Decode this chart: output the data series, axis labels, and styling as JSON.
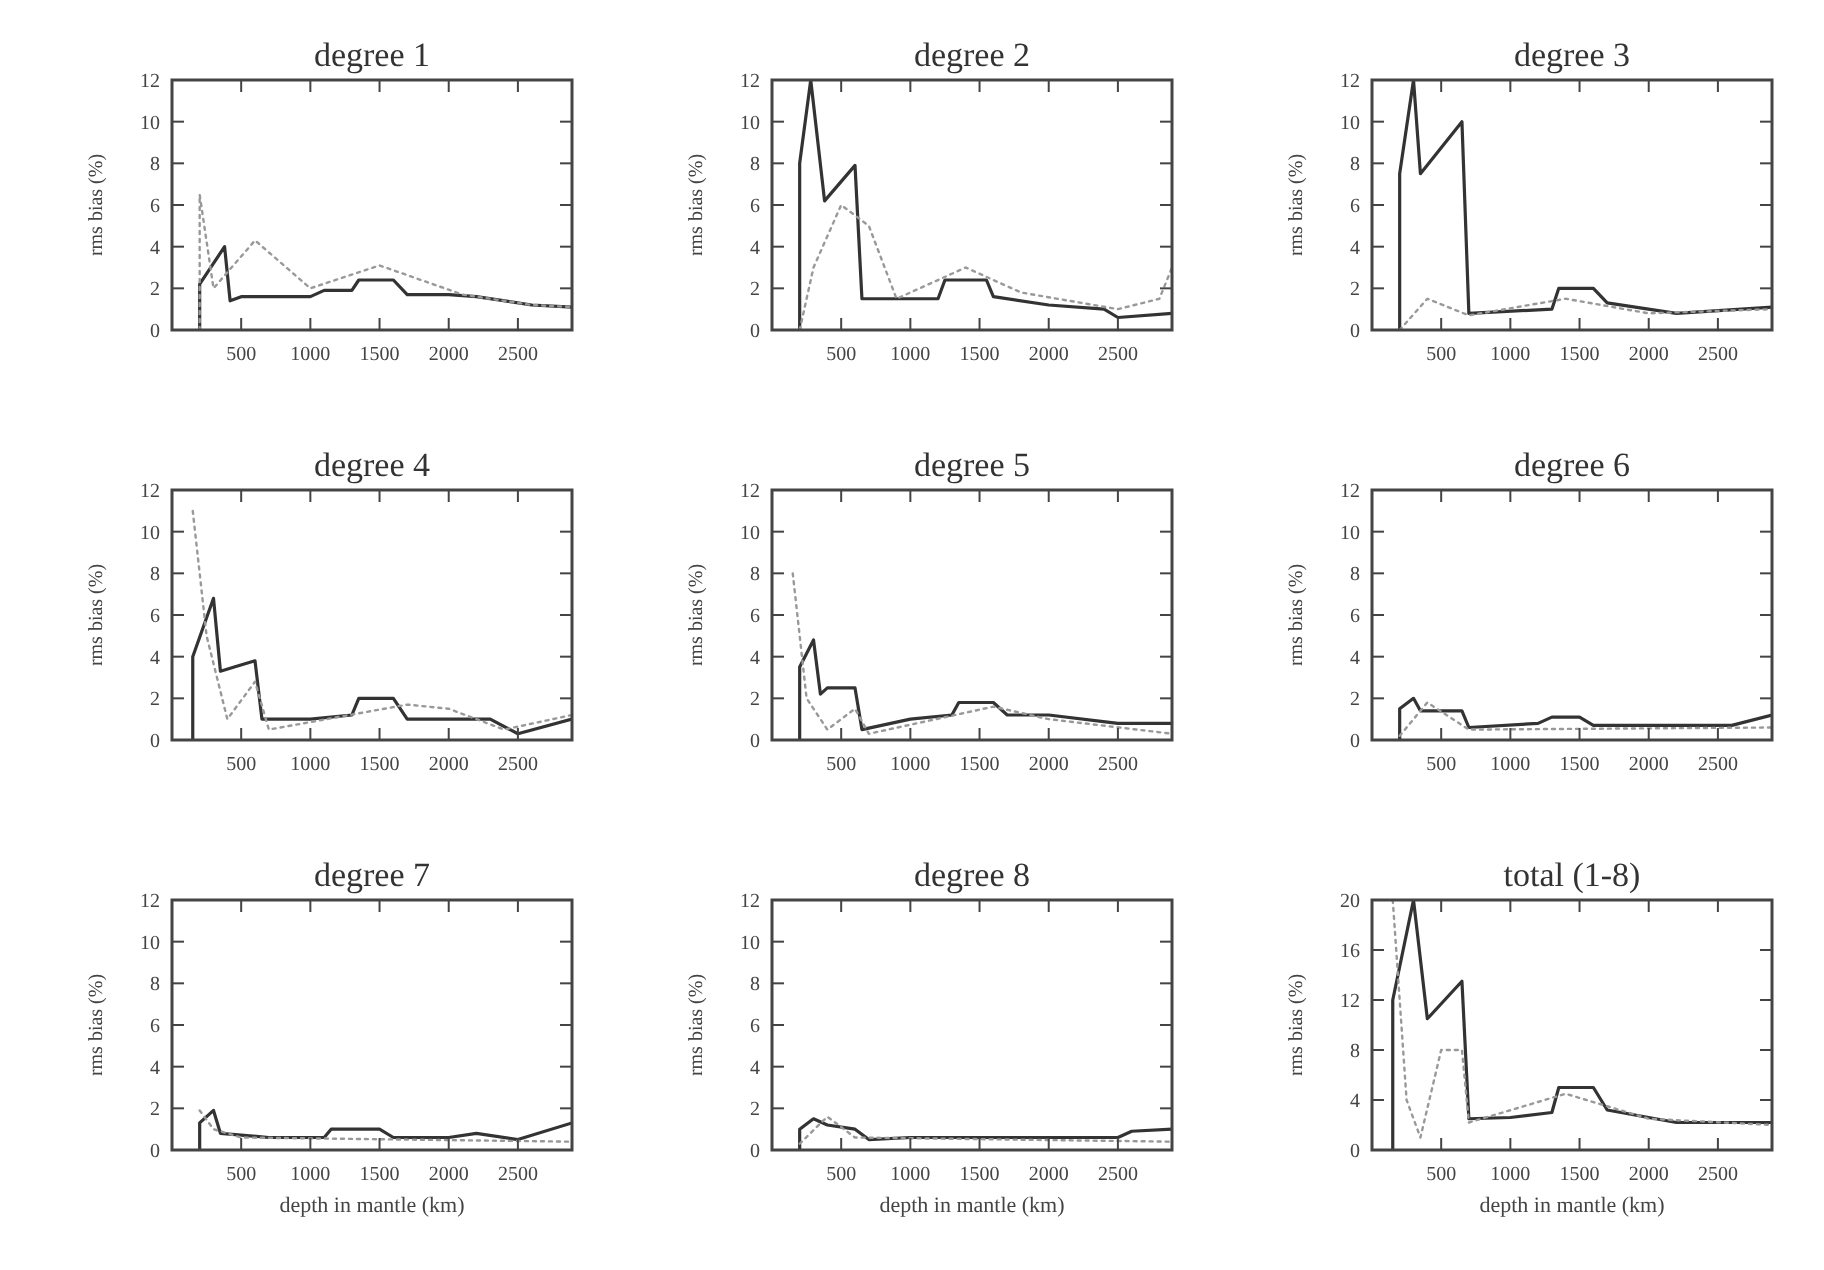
{
  "chart_data": [
    {
      "type": "line",
      "title": "degree 1",
      "ylabel": "rms bias (%)",
      "xlim": [
        0,
        2891
      ],
      "xticks": [
        500,
        1000,
        1500,
        2000,
        2500
      ],
      "ylim": [
        0,
        12
      ],
      "yticks": [
        0,
        2,
        4,
        6,
        8,
        10,
        12
      ],
      "series": [
        {
          "color": "#333333",
          "line_style": "solid",
          "x": [
            200,
            200,
            380,
            420,
            500,
            1000,
            1100,
            1300,
            1350,
            1600,
            1700,
            2000,
            2200,
            2600,
            2891
          ],
          "values": [
            0,
            2.2,
            4,
            1.4,
            1.6,
            1.6,
            1.9,
            1.9,
            2.4,
            2.4,
            1.7,
            1.7,
            1.6,
            1.2,
            1.1
          ]
        },
        {
          "color": "#999999",
          "line_style": "dotted",
          "x": [
            200,
            200,
            300,
            600,
            1000,
            1500,
            2100,
            2600,
            2891
          ],
          "values": [
            0,
            6.5,
            2,
            4.3,
            2,
            3.1,
            1.7,
            1.2,
            1.1
          ]
        }
      ]
    },
    {
      "type": "line",
      "title": "degree 2",
      "ylabel": "rms bias (%)",
      "xlim": [
        0,
        2891
      ],
      "xticks": [
        500,
        1000,
        1500,
        2000,
        2500
      ],
      "ylim": [
        0,
        12
      ],
      "yticks": [
        0,
        2,
        4,
        6,
        8,
        10,
        12
      ],
      "series": [
        {
          "color": "#333333",
          "line_style": "solid",
          "x": [
            200,
            200,
            280,
            380,
            600,
            650,
            1200,
            1250,
            1550,
            1600,
            2000,
            2400,
            2500,
            2891
          ],
          "values": [
            0,
            8,
            12,
            6.2,
            7.9,
            1.5,
            1.5,
            2.4,
            2.4,
            1.6,
            1.2,
            1,
            0.6,
            0.8
          ]
        },
        {
          "color": "#999999",
          "line_style": "dotted",
          "x": [
            200,
            300,
            500,
            700,
            900,
            1400,
            1800,
            2500,
            2800,
            2891
          ],
          "values": [
            0,
            3,
            6,
            5,
            1.5,
            3,
            1.8,
            1,
            1.5,
            3
          ]
        }
      ]
    },
    {
      "type": "line",
      "title": "degree 3",
      "ylabel": "rms bias (%)",
      "xlim": [
        0,
        2891
      ],
      "xticks": [
        500,
        1000,
        1500,
        2000,
        2500
      ],
      "ylim": [
        0,
        12
      ],
      "yticks": [
        0,
        2,
        4,
        6,
        8,
        10,
        12
      ],
      "series": [
        {
          "color": "#333333",
          "line_style": "solid",
          "x": [
            200,
            200,
            300,
            350,
            650,
            700,
            1300,
            1350,
            1600,
            1700,
            2200,
            2891
          ],
          "values": [
            0,
            7.5,
            12,
            7.5,
            10,
            0.8,
            1,
            2,
            2,
            1.3,
            0.8,
            1.1
          ]
        },
        {
          "color": "#999999",
          "line_style": "dotted",
          "x": [
            200,
            400,
            700,
            1400,
            2000,
            2891
          ],
          "values": [
            0,
            1.5,
            0.7,
            1.5,
            0.8,
            1
          ]
        }
      ]
    },
    {
      "type": "line",
      "title": "degree 4",
      "ylabel": "rms bias (%)",
      "xlim": [
        0,
        2891
      ],
      "xticks": [
        500,
        1000,
        1500,
        2000,
        2500
      ],
      "ylim": [
        0,
        12
      ],
      "yticks": [
        0,
        2,
        4,
        6,
        8,
        10,
        12
      ],
      "series": [
        {
          "color": "#333333",
          "line_style": "solid",
          "x": [
            150,
            150,
            300,
            350,
            450,
            600,
            650,
            1000,
            1300,
            1350,
            1600,
            1700,
            2300,
            2500,
            2891
          ],
          "values": [
            0,
            4,
            6.8,
            3.3,
            3.5,
            3.8,
            1,
            1,
            1.2,
            2,
            2,
            1,
            1,
            0.3,
            1
          ]
        },
        {
          "color": "#999999",
          "line_style": "dotted",
          "x": [
            150,
            250,
            400,
            600,
            700,
            1700,
            2000,
            2400,
            2891
          ],
          "values": [
            11,
            5,
            1,
            2.8,
            0.5,
            1.7,
            1.5,
            0.5,
            1.2
          ]
        }
      ]
    },
    {
      "type": "line",
      "title": "degree 5",
      "ylabel": "rms bias (%)",
      "xlim": [
        0,
        2891
      ],
      "xticks": [
        500,
        1000,
        1500,
        2000,
        2500
      ],
      "ylim": [
        0,
        12
      ],
      "yticks": [
        0,
        2,
        4,
        6,
        8,
        10,
        12
      ],
      "series": [
        {
          "color": "#333333",
          "line_style": "solid",
          "x": [
            200,
            200,
            300,
            350,
            400,
            600,
            650,
            1000,
            1300,
            1350,
            1600,
            1700,
            2000,
            2500,
            2891
          ],
          "values": [
            0,
            3.5,
            4.8,
            2.2,
            2.5,
            2.5,
            0.5,
            1,
            1.2,
            1.8,
            1.8,
            1.2,
            1.2,
            0.8,
            0.8
          ]
        },
        {
          "color": "#999999",
          "line_style": "dotted",
          "x": [
            150,
            250,
            400,
            600,
            700,
            1600,
            2000,
            2891
          ],
          "values": [
            8,
            2,
            0.5,
            1.5,
            0.3,
            1.6,
            1,
            0.3
          ]
        }
      ]
    },
    {
      "type": "line",
      "title": "degree 6",
      "ylabel": "rms bias (%)",
      "xlim": [
        0,
        2891
      ],
      "xticks": [
        500,
        1000,
        1500,
        2000,
        2500
      ],
      "ylim": [
        0,
        12
      ],
      "yticks": [
        0,
        2,
        4,
        6,
        8,
        10,
        12
      ],
      "series": [
        {
          "color": "#333333",
          "line_style": "solid",
          "x": [
            200,
            200,
            300,
            350,
            650,
            700,
            1200,
            1300,
            1500,
            1600,
            2600,
            2891
          ],
          "values": [
            0,
            1.5,
            2,
            1.4,
            1.4,
            0.6,
            0.8,
            1.1,
            1.1,
            0.7,
            0.7,
            1.2
          ]
        },
        {
          "color": "#999999",
          "line_style": "dotted",
          "x": [
            200,
            400,
            700,
            2891
          ],
          "values": [
            0.2,
            1.8,
            0.5,
            0.6
          ]
        }
      ]
    },
    {
      "type": "line",
      "title": "degree 7",
      "ylabel": "rms bias (%)",
      "xlabel": "depth in mantle (km)",
      "xlim": [
        0,
        2891
      ],
      "xticks": [
        500,
        1000,
        1500,
        2000,
        2500
      ],
      "ylim": [
        0,
        12
      ],
      "yticks": [
        0,
        2,
        4,
        6,
        8,
        10,
        12
      ],
      "series": [
        {
          "color": "#333333",
          "line_style": "solid",
          "x": [
            200,
            200,
            300,
            350,
            700,
            1100,
            1150,
            1500,
            1600,
            2000,
            2200,
            2500,
            2891
          ],
          "values": [
            0,
            1.3,
            1.9,
            0.8,
            0.6,
            0.6,
            1,
            1,
            0.6,
            0.6,
            0.8,
            0.5,
            1.3
          ]
        },
        {
          "color": "#999999",
          "line_style": "dotted",
          "x": [
            200,
            300,
            500,
            2891
          ],
          "values": [
            1.9,
            1,
            0.6,
            0.4
          ]
        }
      ]
    },
    {
      "type": "line",
      "title": "degree 8",
      "ylabel": "rms bias (%)",
      "xlabel": "depth in mantle (km)",
      "xlim": [
        0,
        2891
      ],
      "xticks": [
        500,
        1000,
        1500,
        2000,
        2500
      ],
      "ylim": [
        0,
        12
      ],
      "yticks": [
        0,
        2,
        4,
        6,
        8,
        10,
        12
      ],
      "series": [
        {
          "color": "#333333",
          "line_style": "solid",
          "x": [
            200,
            200,
            300,
            400,
            600,
            700,
            1000,
            2500,
            2600,
            2891
          ],
          "values": [
            0,
            1,
            1.5,
            1.2,
            1,
            0.5,
            0.6,
            0.6,
            0.9,
            1
          ]
        },
        {
          "color": "#999999",
          "line_style": "dotted",
          "x": [
            200,
            400,
            600,
            2891
          ],
          "values": [
            0.3,
            1.6,
            0.6,
            0.4
          ]
        }
      ]
    },
    {
      "type": "line",
      "title": "total (1-8)",
      "ylabel": "rms bias (%)",
      "xlabel": "depth in mantle (km)",
      "xlim": [
        0,
        2891
      ],
      "xticks": [
        500,
        1000,
        1500,
        2000,
        2500
      ],
      "ylim": [
        0,
        20
      ],
      "yticks": [
        0,
        4,
        8,
        12,
        16,
        20
      ],
      "series": [
        {
          "color": "#333333",
          "line_style": "solid",
          "x": [
            150,
            150,
            300,
            400,
            650,
            700,
            1000,
            1300,
            1350,
            1600,
            1700,
            2200,
            2891
          ],
          "values": [
            0,
            12,
            20,
            10.5,
            13.5,
            2.5,
            2.6,
            3,
            5,
            5,
            3.2,
            2.2,
            2.2
          ]
        },
        {
          "color": "#999999",
          "line_style": "dotted",
          "x": [
            150,
            250,
            350,
            500,
            650,
            700,
            1400,
            2000,
            2891
          ],
          "values": [
            20,
            4,
            1,
            8,
            8,
            2.2,
            4.5,
            2.5,
            2
          ]
        }
      ]
    }
  ]
}
